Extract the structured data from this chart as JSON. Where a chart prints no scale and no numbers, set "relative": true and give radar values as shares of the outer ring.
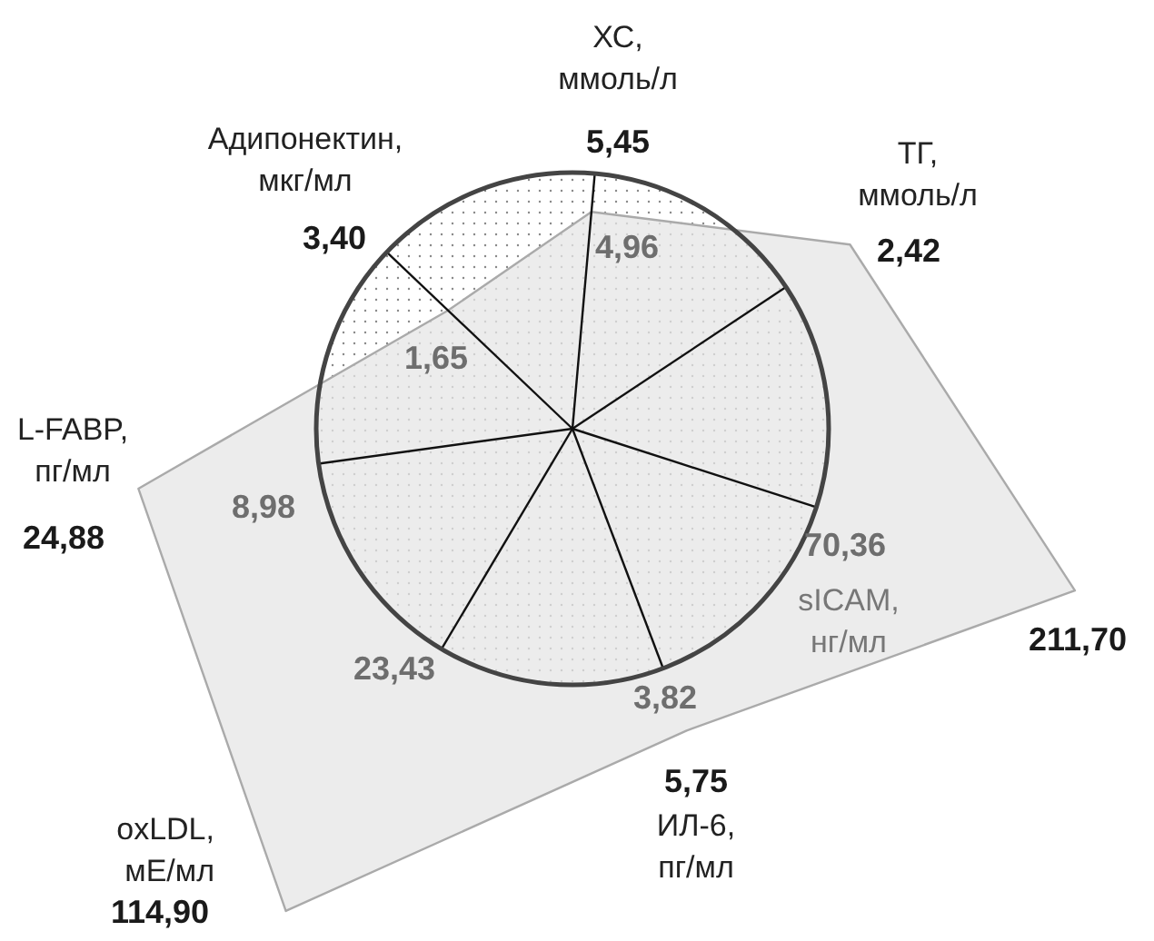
{
  "chart_data": {
    "type": "radar",
    "relative": true,
    "grid": true,
    "categories": [
      "ХС,\nммоль/л",
      "ТГ,\nммоль/л",
      "sICAM,\nнг/мл",
      "ИЛ-6,\nпг/мл",
      "oxLDL,\nмЕ/мл",
      "L-FABP,\nпг/мл",
      "Адипонектин,\nмкг/мл"
    ],
    "series": [
      {
        "color": "#e6e6e6",
        "values": [
          0.85,
          1.3,
          2.06,
          1.26,
          2.19,
          1.71,
          0.67
        ]
      }
    ],
    "annotations": [
      "5,45",
      "2,42",
      "211,70",
      "5,75",
      "114,90",
      "24,88",
      "3,40",
      "4,96",
      "70,36",
      "3,82",
      "23,43",
      "8,98",
      "1,65"
    ]
  }
}
